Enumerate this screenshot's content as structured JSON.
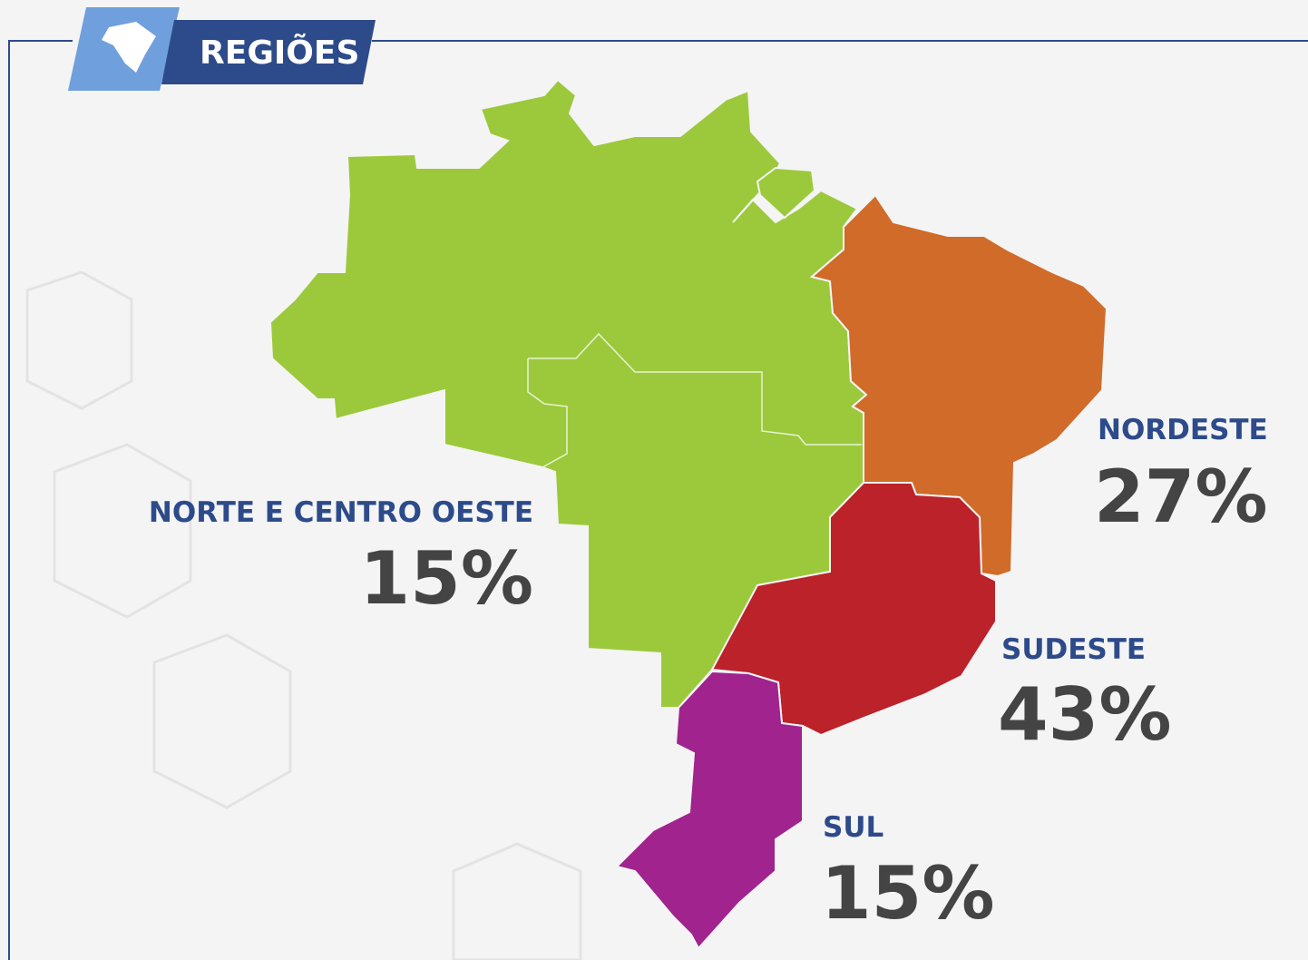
{
  "header": {
    "title": "REGIÕES"
  },
  "regions": [
    {
      "name": "NORTE E CENTRO OESTE",
      "value": "15%",
      "color": "#9cc93c"
    },
    {
      "name": "NORDESTE",
      "value": "27%",
      "color": "#d06b2a"
    },
    {
      "name": "SUDESTE",
      "value": "43%",
      "color": "#bb2229"
    },
    {
      "name": "SUL",
      "value": "15%",
      "color": "#a0238e"
    }
  ]
}
